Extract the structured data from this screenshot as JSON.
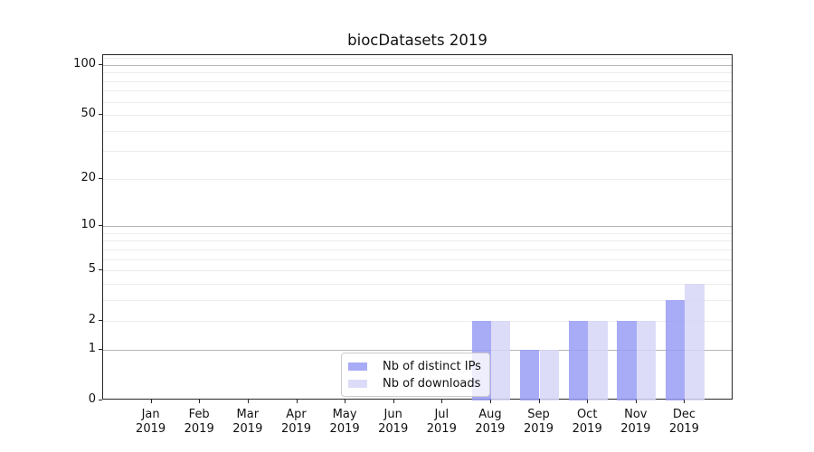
{
  "title": "biocDatasets 2019",
  "chart_data": {
    "type": "bar",
    "title": "biocDatasets 2019",
    "y_scale": "log10(value+1)",
    "ylim": [
      0,
      115
    ],
    "grid": true,
    "legend_position": "lower-center",
    "categories": [
      {
        "month": "Jan",
        "year": "2019"
      },
      {
        "month": "Feb",
        "year": "2019"
      },
      {
        "month": "Mar",
        "year": "2019"
      },
      {
        "month": "Apr",
        "year": "2019"
      },
      {
        "month": "May",
        "year": "2019"
      },
      {
        "month": "Jun",
        "year": "2019"
      },
      {
        "month": "Jul",
        "year": "2019"
      },
      {
        "month": "Aug",
        "year": "2019"
      },
      {
        "month": "Sep",
        "year": "2019"
      },
      {
        "month": "Oct",
        "year": "2019"
      },
      {
        "month": "Nov",
        "year": "2019"
      },
      {
        "month": "Dec",
        "year": "2019"
      }
    ],
    "series": [
      {
        "name": "Nb of distinct IPs",
        "bar_color": "rgba(153,156,243,0.85)",
        "swatch_color": "#a8abf5",
        "values": [
          0,
          0,
          0,
          0,
          0,
          0,
          0,
          2,
          1,
          2,
          2,
          3
        ]
      },
      {
        "name": "Nb of downloads",
        "bar_color": "rgba(214,214,247,0.85)",
        "swatch_color": "#dcdcf8",
        "values": [
          0,
          0,
          0,
          0,
          0,
          0,
          0,
          2,
          1,
          2,
          2,
          4
        ]
      }
    ],
    "y_ticks": [
      0,
      1,
      2,
      5,
      10,
      20,
      50,
      100
    ],
    "y_major_gridlines": [
      1,
      10,
      100
    ],
    "y_minor_gridlines": [
      2,
      3,
      4,
      5,
      6,
      7,
      8,
      9,
      20,
      30,
      40,
      50,
      60,
      70,
      80,
      90,
      110
    ]
  }
}
